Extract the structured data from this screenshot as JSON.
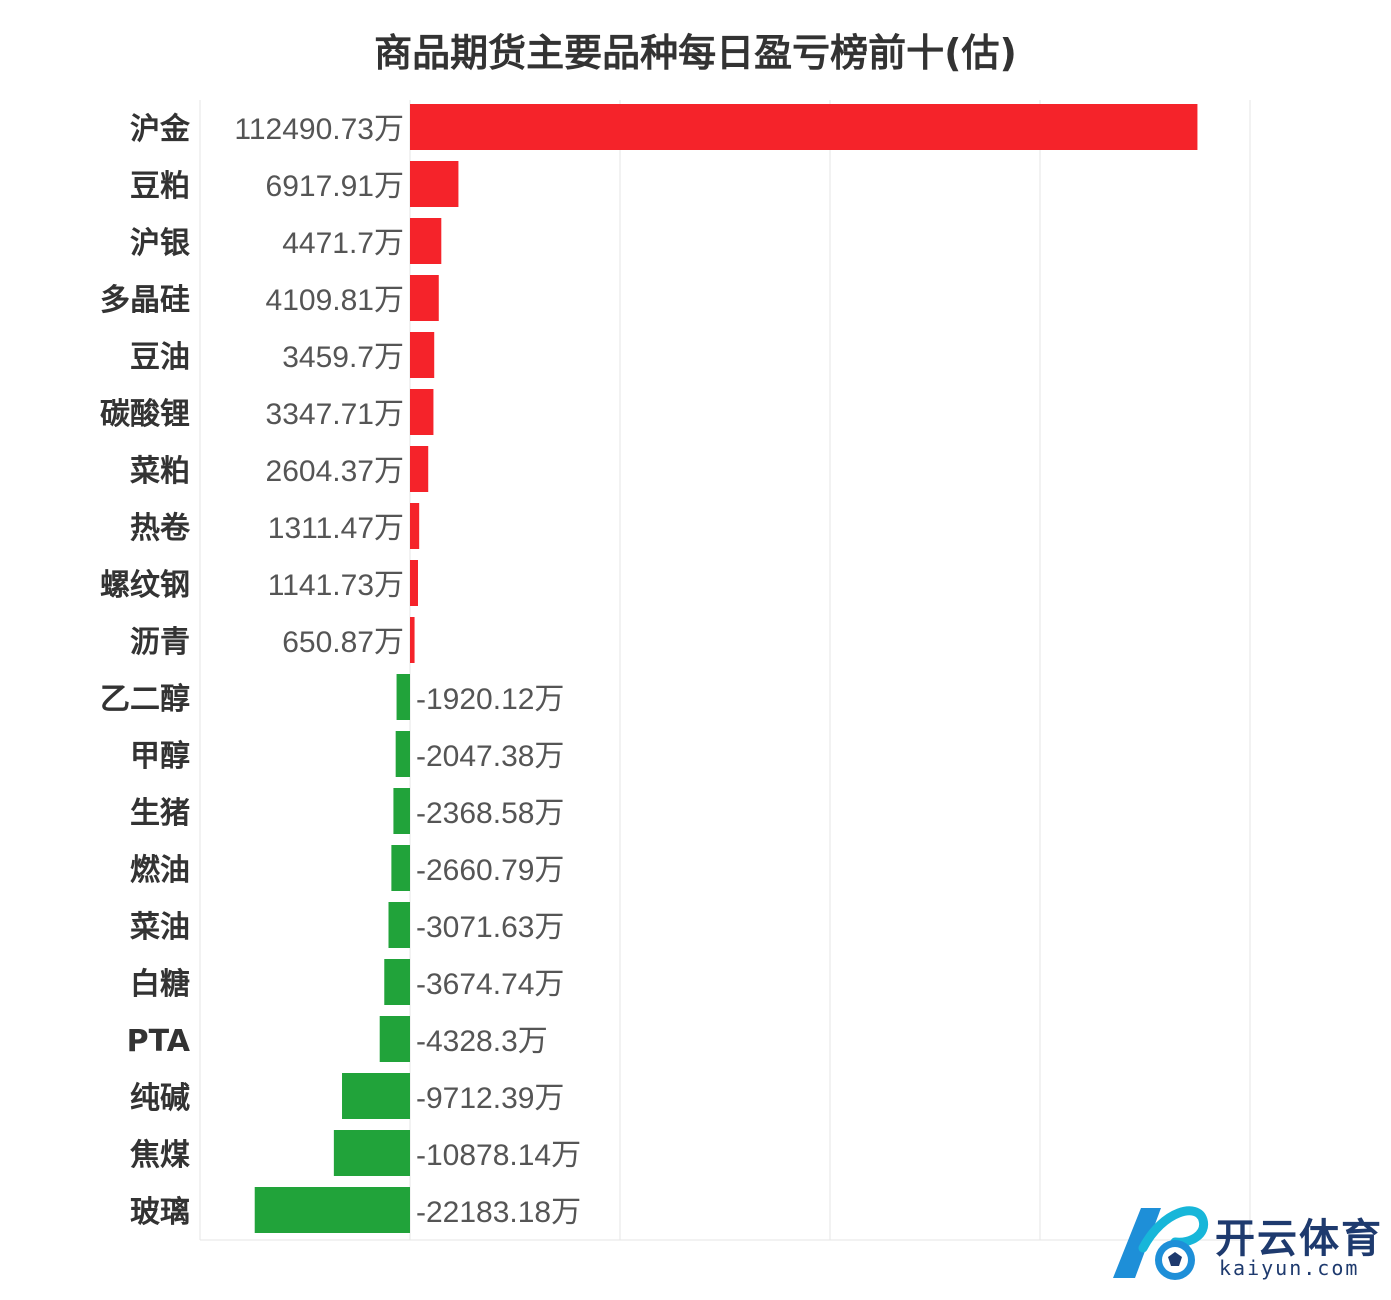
{
  "chart_data": {
    "type": "bar",
    "orientation": "horizontal",
    "title": "商品期货主要品种每日盈亏榜前十(估)",
    "value_suffix": "万",
    "categories": [
      "沪金",
      "豆粕",
      "沪银",
      "多晶硅",
      "豆油",
      "碳酸锂",
      "菜粕",
      "热卷",
      "螺纹钢",
      "沥青",
      "乙二醇",
      "甲醇",
      "生猪",
      "燃油",
      "菜油",
      "白糖",
      "PTA",
      "纯碱",
      "焦煤",
      "玻璃"
    ],
    "values": [
      112490.73,
      6917.91,
      4471.7,
      4109.81,
      3459.7,
      3347.71,
      2604.37,
      1311.47,
      1141.73,
      650.87,
      -1920.12,
      -2047.38,
      -2368.58,
      -2660.79,
      -3071.63,
      -3674.74,
      -4328.3,
      -9712.39,
      -10878.14,
      -22183.18
    ],
    "labels": [
      "112490.73万",
      "6917.91万",
      "4471.7万",
      "4109.81万",
      "3459.7万",
      "3347.71万",
      "2604.37万",
      "1311.47万",
      "1141.73万",
      "650.87万",
      "-1920.12万",
      "-2047.38万",
      "-2368.58万",
      "-2660.79万",
      "-3071.63万",
      "-3674.74万",
      "-4328.3万",
      "-9712.39万",
      "-10878.14万",
      "-22183.18万"
    ],
    "xlim": [
      -30000,
      120000
    ],
    "grid": true,
    "legend": "none",
    "colors": {
      "positive": "#f5232a",
      "negative": "#21a33a",
      "grid": "#e6e6e6",
      "label": "#555555",
      "category": "#333333"
    }
  },
  "watermark": {
    "brand": "开云体育",
    "url": "kaiyun.com"
  }
}
